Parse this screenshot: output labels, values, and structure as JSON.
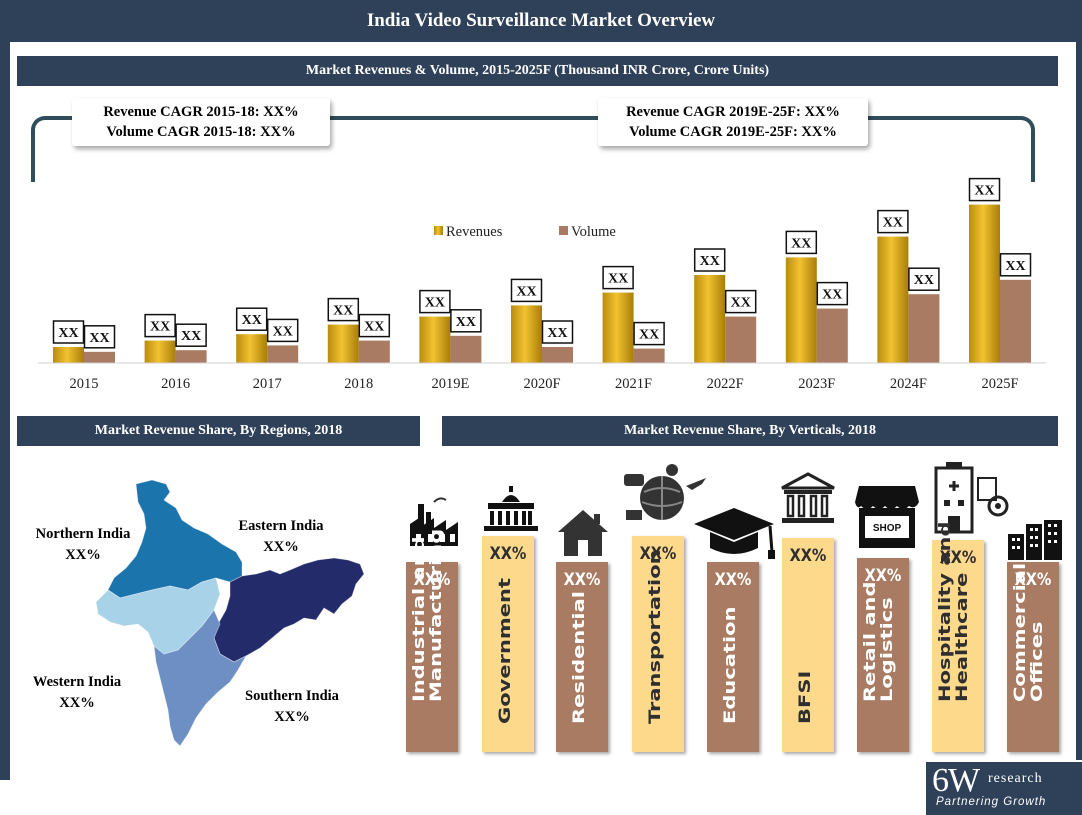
{
  "title": "India Video Surveillance Market Overview",
  "chart_data": {
    "type": "bar",
    "title": "Market Revenues & Volume, 2015-2025F (Thousand INR Crore, Crore Units)",
    "categories": [
      "2015",
      "2016",
      "2017",
      "2018",
      "2019E",
      "2020F",
      "2021F",
      "2022F",
      "2023F",
      "2024F",
      "2025F"
    ],
    "series": [
      {
        "name": "Revenues",
        "values": [
          10,
          14,
          18,
          24,
          29,
          36,
          44,
          55,
          66,
          79,
          99
        ],
        "label": "XX",
        "color": "#d4a017"
      },
      {
        "name": "Volume",
        "values": [
          7,
          8,
          11,
          14,
          17,
          10,
          9,
          29,
          34,
          43,
          52
        ],
        "label": "XX",
        "color": "#a97b63"
      }
    ],
    "legend": "top-center",
    "ylim": [
      0,
      100
    ],
    "grid": false,
    "xlabel": "",
    "ylabel": ""
  },
  "cagr": {
    "left": {
      "line1": "Revenue CAGR 2015-18: XX%",
      "line2": "Volume CAGR 2015-18: XX%"
    },
    "right": {
      "line1": "Revenue CAGR 2019E-25F: XX%",
      "line2": "Volume CAGR 2019E-25F: XX%"
    }
  },
  "regions": {
    "title": "Market Revenue Share, By Regions, 2018",
    "items": [
      {
        "name": "Northern India",
        "value": "XX%",
        "color": "#1c74ad"
      },
      {
        "name": "Eastern India",
        "value": "XX%",
        "color": "#242b6b"
      },
      {
        "name": "Western India",
        "value": "XX%",
        "color": "#a7d2e8"
      },
      {
        "name": "Southern India",
        "value": "XX%",
        "color": "#6e8fc4"
      }
    ]
  },
  "verticals": {
    "title": "Market Revenue Share, By Verticals, 2018",
    "items": [
      {
        "name": "Industrial and Manufacturing",
        "value": "XX%",
        "style": "brown",
        "icon": "factory-icon"
      },
      {
        "name": "Government",
        "value": "XX%",
        "style": "yellow",
        "icon": "government-building-icon"
      },
      {
        "name": "Residential",
        "value": "XX%",
        "style": "brown",
        "icon": "house-icon"
      },
      {
        "name": "Transportation",
        "value": "XX%",
        "style": "yellow",
        "icon": "transportation-globe-icon"
      },
      {
        "name": "Education",
        "value": "XX%",
        "style": "brown",
        "icon": "graduation-cap-icon"
      },
      {
        "name": "BFSI",
        "value": "XX%",
        "style": "yellow",
        "icon": "bank-icon"
      },
      {
        "name": "Retail and Logistics",
        "value": "XX%",
        "style": "brown",
        "icon": "shop-icon"
      },
      {
        "name": "Hospitality and Healthcare",
        "value": "XX%",
        "style": "yellow",
        "icon": "hospital-icon"
      },
      {
        "name": "Commercial Offices",
        "value": "XX%",
        "style": "brown",
        "icon": "office-buildings-icon"
      }
    ],
    "shop_sign": "SHOP"
  },
  "logo": {
    "main": "6W",
    "sub": "research",
    "tagline": "Partnering Growth"
  }
}
